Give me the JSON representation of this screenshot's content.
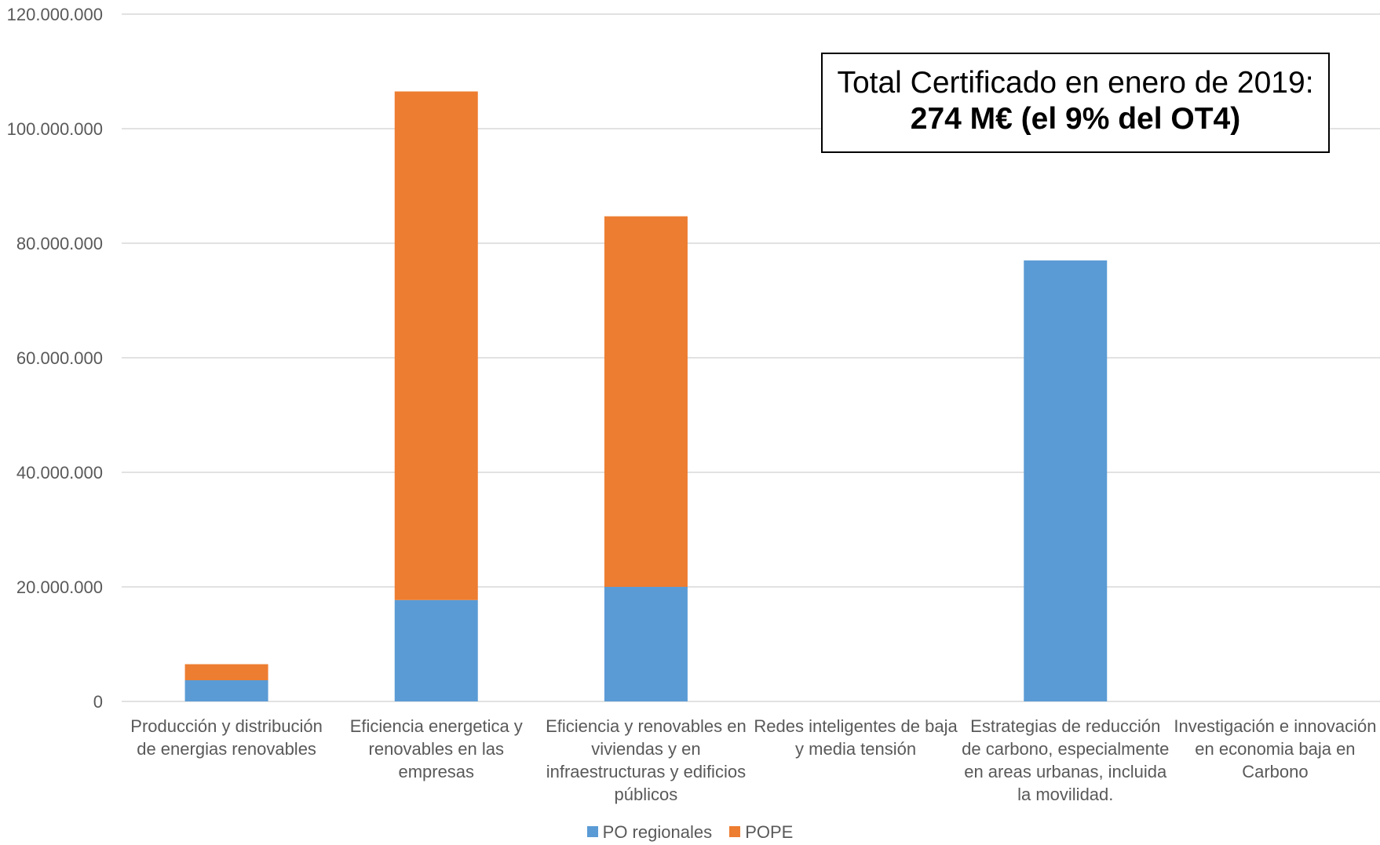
{
  "chart_data": {
    "type": "bar",
    "stacked": true,
    "categories": [
      [
        "Producción y distribución",
        "de energias renovables"
      ],
      [
        "Eficiencia energetica y",
        "renovables en las",
        "empresas"
      ],
      [
        "Eficiencia  y renovables en",
        "viviendas y en",
        "infraestructuras y edificios",
        "públicos"
      ],
      [
        "Redes inteligentes de baja",
        "y media tensión"
      ],
      [
        "Estrategias de reducción",
        "de carbono, especialmente",
        "en areas urbanas, incluida",
        "la movilidad."
      ],
      [
        "Investigación e innovación",
        "en economia baja en",
        "Carbono"
      ]
    ],
    "series": [
      {
        "name": "PO regionales",
        "color": "#5B9BD5",
        "values": [
          3700000,
          17700000,
          20000000,
          0,
          77000000,
          0
        ]
      },
      {
        "name": "POPE",
        "color": "#ED7D31",
        "values": [
          2800000,
          88800000,
          64700000,
          0,
          0,
          0
        ]
      }
    ],
    "ylim": [
      0,
      120000000
    ],
    "yticks": [
      "0",
      "20.000.000",
      "40.000.000",
      "60.000.000",
      "80.000.000",
      "100.000.000",
      "120.000.000"
    ],
    "ytick_values": [
      0,
      20000000,
      40000000,
      60000000,
      80000000,
      100000000,
      120000000
    ],
    "grid": true,
    "legend_position": "bottom",
    "annotation": {
      "line1": "Total Certificado en enero de 2019:",
      "line2": "274 M€ (el 9% del OT4)"
    }
  }
}
